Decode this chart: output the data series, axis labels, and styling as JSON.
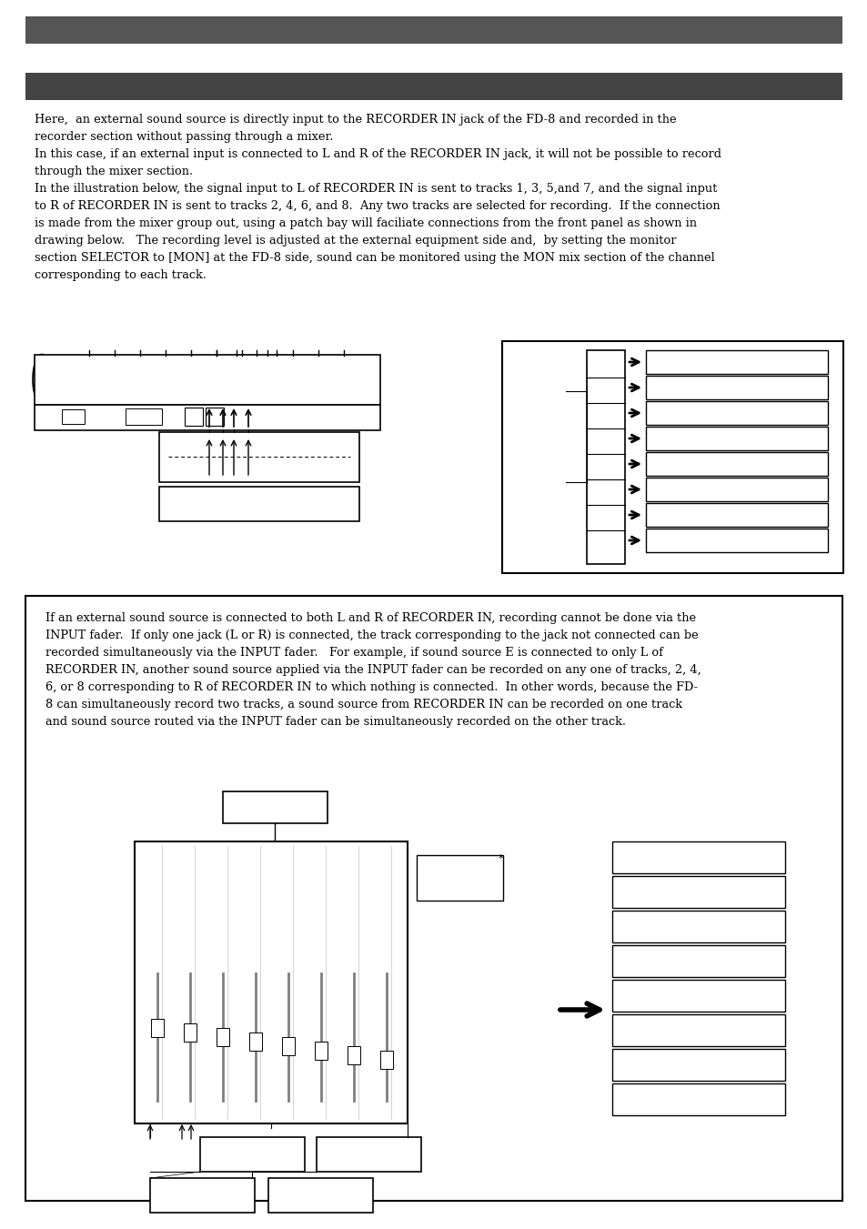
{
  "bg_color": "#ffffff",
  "header_bar_color": "#555555",
  "subheader_bar_color": "#444444",
  "body_text_1": "Here,  an external sound source is directly input to the RECORDER IN jack of the FD-8 and recorded in the\nrecorder section without passing through a mixer.\nIn this case, if an external input is connected to L and R of the RECORDER IN jack, it will not be possible to record\nthrough the mixer section.\nIn the illustration below, the signal input to L of RECORDER IN is sent to tracks 1, 3, 5,and 7, and the signal input\nto R of RECORDER IN is sent to tracks 2, 4, 6, and 8.  Any two tracks are selected for recording.  If the connection\nis made from the mixer group out, using a patch bay will faciliate connections from the front panel as shown in\ndrawing below.   The recording level is adjusted at the external equipment side and,  by setting the monitor\nsection SELECTOR to [MON] at the FD-8 side, sound can be monitored using the MON mix section of the channel\ncorresponding to each track.",
  "body_text_2": "If an external sound source is connected to both L and R of RECORDER IN, recording cannot be done via the\nINPUT fader.  If only one jack (L or R) is connected, the track corresponding to the jack not connected can be\nrecorded simultaneously via the INPUT fader.   For example, if sound source E is connected to only L of\nRECORDER IN, another sound source applied via the INPUT fader can be recorded on any one of tracks, 2, 4,\n6, or 8 corresponding to R of RECORDER IN to which nothing is connected.  In other words, because the FD-\n8 can simultaneously record two tracks, a sound source from RECORDER IN can be recorded on one track\nand sound source routed via the INPUT fader can be simultaneously recorded on the other track."
}
